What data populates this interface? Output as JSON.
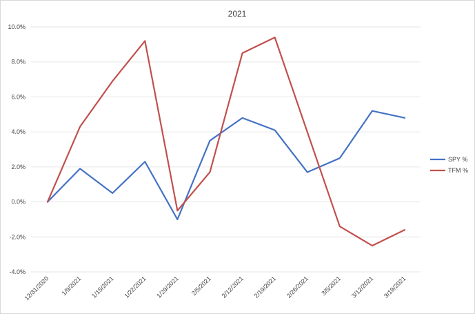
{
  "chart_data": {
    "type": "line",
    "title": "2021",
    "xlabel": "",
    "ylabel": "",
    "categories": [
      "12/31/2020",
      "1/9/2021",
      "1/15/2021",
      "1/22/2021",
      "1/29/2021",
      "2/5/2021",
      "2/12/2021",
      "2/19/2021",
      "2/26/2021",
      "3/5/2021",
      "3/12/2021",
      "3/19/2021"
    ],
    "ylim": [
      -0.04,
      0.1
    ],
    "ytick_step": 0.02,
    "ytick_labels": [
      "-4.0%",
      "-2.0%",
      "0.0%",
      "2.0%",
      "4.0%",
      "6.0%",
      "8.0%",
      "10.0%"
    ],
    "grid": true,
    "legend_position": "right",
    "series": [
      {
        "name": "SPY %",
        "color": "#4472C4",
        "values": [
          0.0,
          0.019,
          0.005,
          0.023,
          -0.01,
          0.035,
          0.048,
          0.041,
          0.017,
          0.025,
          0.052,
          0.048
        ]
      },
      {
        "name": "TFM %",
        "color": "#C0504D",
        "values": [
          0.0,
          0.043,
          0.069,
          0.092,
          -0.005,
          0.017,
          0.085,
          0.094,
          0.04,
          -0.014,
          -0.025,
          -0.016
        ]
      }
    ]
  }
}
